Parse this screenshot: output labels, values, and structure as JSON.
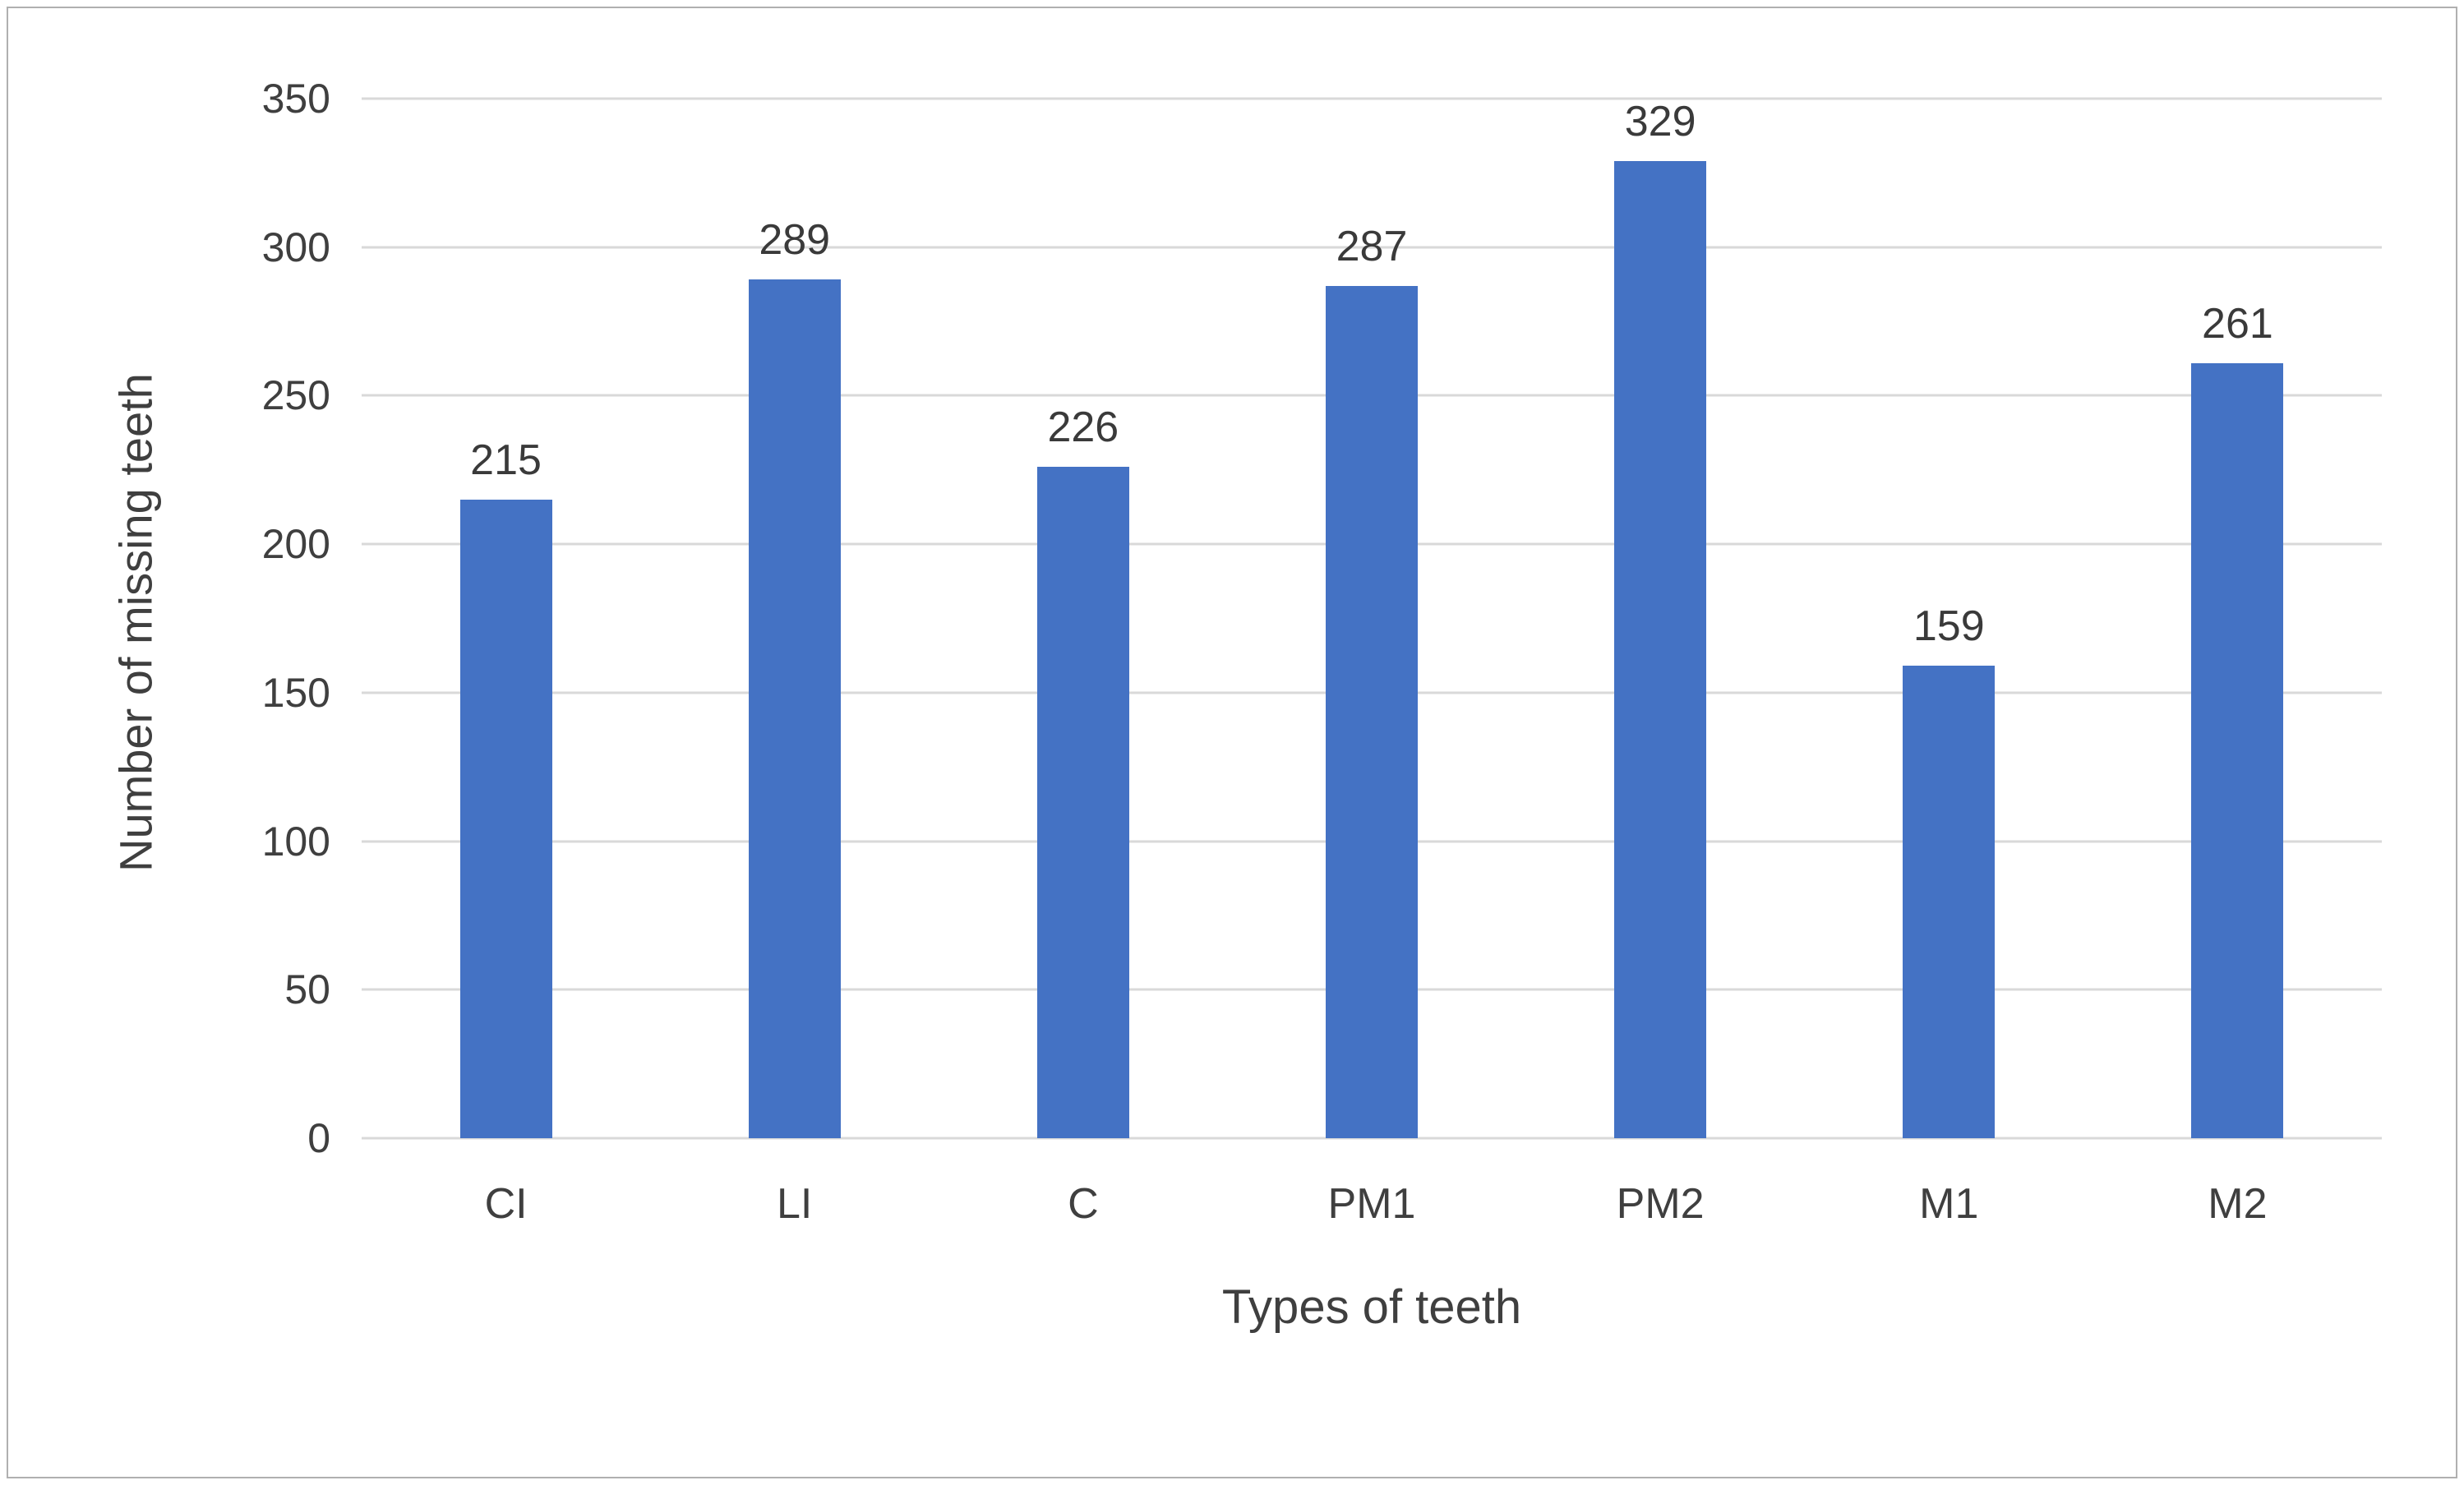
{
  "chart_data": {
    "type": "bar",
    "title": "",
    "categories": [
      "CI",
      "LI",
      "C",
      "PM1",
      "PM2",
      "M1",
      "M2"
    ],
    "values": [
      215,
      289,
      226,
      287,
      329,
      159,
      261
    ],
    "xlabel": "Types of teeth",
    "ylabel": "Number of missing teeth",
    "ylim": [
      0,
      350
    ],
    "yticks": [
      0,
      50,
      100,
      150,
      200,
      250,
      300,
      350
    ],
    "grid": true,
    "legend": false,
    "colors": {
      "bar": "#4472c4",
      "gridline": "#d9d9d9",
      "text": "#3f3f3f",
      "figure_border": "#b0b0b0"
    }
  }
}
